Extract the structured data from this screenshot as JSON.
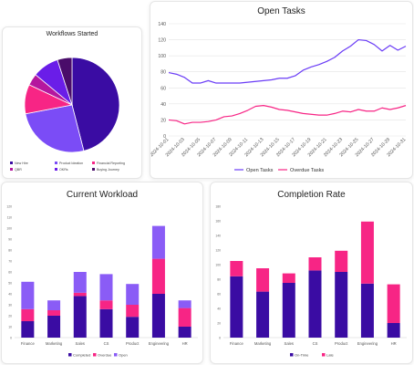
{
  "chart_data": [
    {
      "type": "pie",
      "title": "Workflows Started",
      "categories": [
        "New Hire",
        "Product Ideation",
        "Financial Reporting",
        "QBR",
        "OKRs",
        "Buying Journey"
      ],
      "values": [
        46,
        26,
        10,
        4,
        9,
        5
      ],
      "colors": [
        "#3a0ca3",
        "#7b4cf6",
        "#f72585",
        "#b5179e",
        "#6a1de8",
        "#4a0c6a"
      ],
      "legend": "bottom"
    },
    {
      "type": "line",
      "title": "Open Tasks",
      "x": [
        "2024-10-01",
        "2024-10-02",
        "2024-10-03",
        "2024-10-04",
        "2024-10-05",
        "2024-10-06",
        "2024-10-07",
        "2024-10-08",
        "2024-10-09",
        "2024-10-10",
        "2024-10-11",
        "2024-10-12",
        "2024-10-13",
        "2024-10-14",
        "2024-10-15",
        "2024-10-16",
        "2024-10-17",
        "2024-10-18",
        "2024-10-19",
        "2024-10-20",
        "2024-10-21",
        "2024-10-22",
        "2024-10-23",
        "2024-10-24",
        "2024-10-25",
        "2024-10-26",
        "2024-10-27",
        "2024-10-28",
        "2024-10-29",
        "2024-10-30",
        "2024-10-31"
      ],
      "xticks": [
        "2024-10-01",
        "2024-10-03",
        "2024-10-05",
        "2024-10-07",
        "2024-10-09",
        "2024-10-11",
        "2024-10-13",
        "2024-10-15",
        "2024-10-17",
        "2024-10-19",
        "2024-10-21",
        "2024-10-23",
        "2024-10-25",
        "2024-10-27",
        "2024-10-29",
        "2024-10-31"
      ],
      "series": [
        {
          "name": "Open Tasks",
          "color": "#6a3cf6",
          "values": [
            79,
            77,
            73,
            66,
            66,
            69,
            66,
            66,
            66,
            66,
            67,
            68,
            69,
            70,
            72,
            72,
            75,
            82,
            86,
            89,
            93,
            98,
            106,
            112,
            120,
            119,
            114,
            106,
            113,
            107,
            112
          ]
        },
        {
          "name": "Overdue Tasks",
          "color": "#f72585",
          "values": [
            20,
            19,
            15,
            17,
            17,
            18,
            20,
            24,
            25,
            28,
            32,
            37,
            38,
            36,
            33,
            32,
            30,
            28,
            27,
            26,
            26,
            28,
            31,
            30,
            33,
            31,
            31,
            35,
            33,
            35,
            38
          ]
        }
      ],
      "ylim": [
        0,
        140
      ],
      "yticks": [
        0,
        20,
        40,
        60,
        80,
        100,
        120,
        140
      ],
      "legend": "bottom"
    },
    {
      "type": "bar",
      "stacked": true,
      "title": "Current Workload",
      "categories": [
        "Finance",
        "Marketing",
        "Sales",
        "CS",
        "Product",
        "Engineering",
        "HR"
      ],
      "series": [
        {
          "name": "Completed",
          "color": "#3a0ca3",
          "values": [
            15,
            20,
            38,
            26,
            19,
            40,
            10
          ]
        },
        {
          "name": "Overdue",
          "color": "#f72585",
          "values": [
            11,
            5,
            3,
            8,
            11,
            32,
            17
          ]
        },
        {
          "name": "Open",
          "color": "#8a5cf6",
          "values": [
            25,
            9,
            19,
            24,
            19,
            30,
            7
          ]
        }
      ],
      "ylim": [
        0,
        120
      ],
      "yticks": [
        0,
        10,
        20,
        30,
        40,
        50,
        60,
        70,
        80,
        90,
        100,
        110,
        120
      ],
      "legend": "bottom"
    },
    {
      "type": "bar",
      "stacked": true,
      "title": "Completion Rate",
      "categories": [
        "Finance",
        "Marketing",
        "Sales",
        "CS",
        "Product",
        "Engineering",
        "HR"
      ],
      "series": [
        {
          "name": "On-Time",
          "color": "#3a0ca3",
          "values": [
            84,
            63,
            75,
            92,
            90,
            74,
            20
          ]
        },
        {
          "name": "Late",
          "color": "#f72585",
          "values": [
            21,
            32,
            13,
            18,
            29,
            85,
            53
          ]
        }
      ],
      "ylim": [
        0,
        180
      ],
      "yticks": [
        0,
        20,
        40,
        60,
        80,
        100,
        120,
        140,
        160,
        180
      ],
      "legend": "bottom"
    }
  ]
}
